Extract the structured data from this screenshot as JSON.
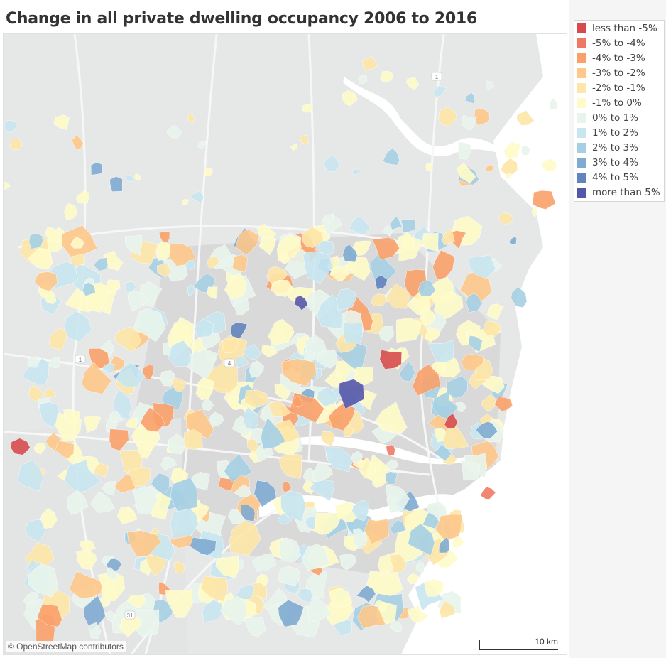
{
  "title": "Change in all private dwelling occupancy 2006 to 2016",
  "map": {
    "attribution": "© OpenStreetMap contributors",
    "scale_label": "10 km",
    "road_labels": [
      "1",
      "4",
      "31",
      "1"
    ]
  },
  "legend": {
    "items": [
      {
        "label": "less than -5%",
        "color": "#d64b4f"
      },
      {
        "label": "-5% to -4%",
        "color": "#ef7a63"
      },
      {
        "label": "-4% to -3%",
        "color": "#f9a06a"
      },
      {
        "label": "-3% to -2%",
        "color": "#fdc88a"
      },
      {
        "label": "-2% to -1%",
        "color": "#fde6a6"
      },
      {
        "label": "-1% to 0%",
        "color": "#fefbc8"
      },
      {
        "label": "0% to 1%",
        "color": "#e8f4ec"
      },
      {
        "label": "1% to 2%",
        "color": "#c8e6ef"
      },
      {
        "label": "2% to 3%",
        "color": "#a5cfe3"
      },
      {
        "label": "3% to 4%",
        "color": "#7fabd0"
      },
      {
        "label": "4% to 5%",
        "color": "#6283bd"
      },
      {
        "label": "more than 5%",
        "color": "#5556a8"
      }
    ]
  }
}
